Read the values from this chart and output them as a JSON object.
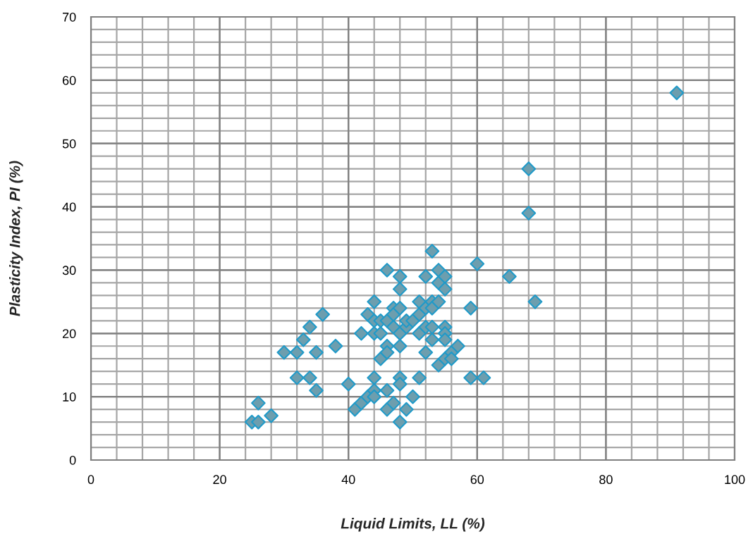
{
  "chart_data": {
    "type": "scatter",
    "xlabel": "Liquid Limits, LL (%)",
    "ylabel": "Plasticity Index, PI (%)",
    "x": [
      25,
      26,
      26,
      28,
      30,
      32,
      32,
      33,
      34,
      34,
      35,
      35,
      36,
      38,
      40,
      41,
      42,
      42,
      43,
      43,
      44,
      44,
      44,
      44,
      44,
      44,
      45,
      45,
      45,
      46,
      46,
      46,
      46,
      46,
      46,
      47,
      47,
      47,
      47,
      48,
      48,
      48,
      48,
      48,
      48,
      48,
      48,
      49,
      49,
      49,
      50,
      50,
      51,
      51,
      51,
      51,
      52,
      52,
      52,
      52,
      53,
      53,
      53,
      53,
      53,
      54,
      54,
      54,
      54,
      55,
      55,
      55,
      55,
      55,
      55,
      56,
      56,
      57,
      59,
      59,
      60,
      61,
      65,
      68,
      68,
      69,
      91
    ],
    "values": [
      6,
      6,
      9,
      7,
      17,
      17,
      13,
      19,
      21,
      13,
      17,
      11,
      23,
      18,
      12,
      8,
      9,
      20,
      10,
      23,
      25,
      22,
      20,
      13,
      11,
      10,
      22,
      20,
      16,
      30,
      22,
      18,
      17,
      11,
      8,
      24,
      21,
      9,
      23,
      29,
      27,
      24,
      20,
      18,
      13,
      12,
      6,
      21,
      22,
      8,
      22,
      10,
      25,
      23,
      20,
      13,
      29,
      24,
      21,
      17,
      33,
      25,
      24,
      21,
      19,
      30,
      28,
      25,
      15,
      29,
      27,
      21,
      20,
      19,
      16,
      17,
      16,
      18,
      24,
      13,
      31,
      13,
      29,
      46,
      39,
      25,
      58
    ],
    "color": "#6d9eae",
    "marker": "diamond",
    "xlim": [
      0,
      100
    ],
    "xticks": [
      0,
      20,
      40,
      60,
      80,
      100
    ],
    "ylim": [
      0,
      70
    ],
    "yticks": [
      0,
      10,
      20,
      30,
      40,
      50,
      60,
      70
    ],
    "grid": true
  }
}
